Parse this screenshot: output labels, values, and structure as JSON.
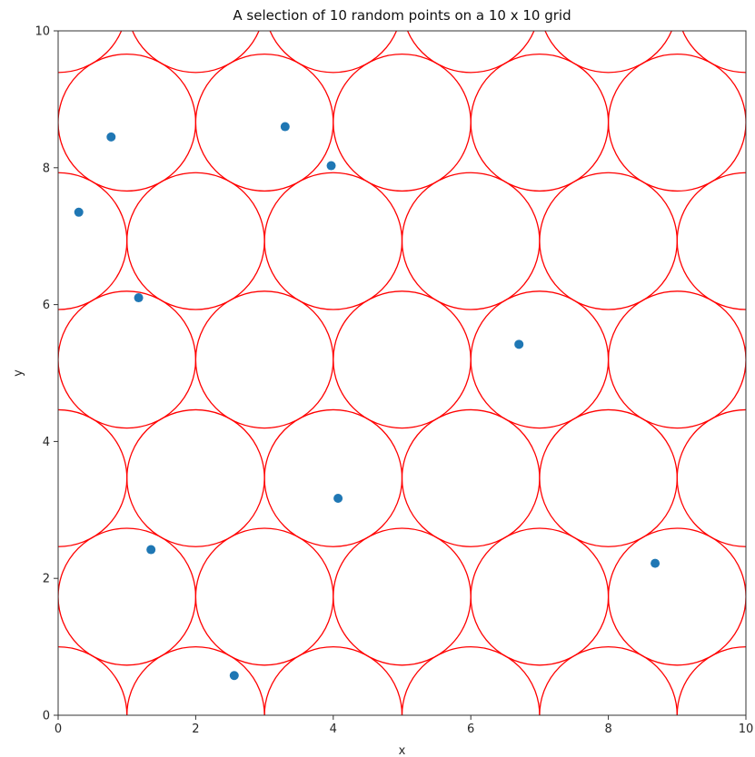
{
  "chart_data": {
    "type": "scatter",
    "title": "A selection of 10 random points on a 10 x 10 grid",
    "xlabel": "x",
    "ylabel": "y",
    "xlim": [
      0,
      10
    ],
    "ylim": [
      0,
      10
    ],
    "xticks": [
      "0",
      "2",
      "4",
      "6",
      "8",
      "10"
    ],
    "yticks": [
      "0",
      "2",
      "4",
      "6",
      "8",
      "10"
    ],
    "grid": false,
    "colors": {
      "points": "#1f77b4",
      "circles": "#ff0000",
      "axes": "#333333"
    },
    "circle_radius": 1.0,
    "circle_centers": [
      [
        0,
        0
      ],
      [
        2,
        0
      ],
      [
        4,
        0
      ],
      [
        6,
        0
      ],
      [
        8,
        0
      ],
      [
        10,
        0
      ],
      [
        1,
        1.732
      ],
      [
        3,
        1.732
      ],
      [
        5,
        1.732
      ],
      [
        7,
        1.732
      ],
      [
        9,
        1.732
      ],
      [
        0,
        3.464
      ],
      [
        2,
        3.464
      ],
      [
        4,
        3.464
      ],
      [
        6,
        3.464
      ],
      [
        8,
        3.464
      ],
      [
        10,
        3.464
      ],
      [
        1,
        5.196
      ],
      [
        3,
        5.196
      ],
      [
        5,
        5.196
      ],
      [
        7,
        5.196
      ],
      [
        9,
        5.196
      ],
      [
        0,
        6.928
      ],
      [
        2,
        6.928
      ],
      [
        4,
        6.928
      ],
      [
        6,
        6.928
      ],
      [
        8,
        6.928
      ],
      [
        10,
        6.928
      ],
      [
        1,
        8.66
      ],
      [
        3,
        8.66
      ],
      [
        5,
        8.66
      ],
      [
        7,
        8.66
      ],
      [
        9,
        8.66
      ],
      [
        0,
        10.392
      ],
      [
        2,
        10.392
      ],
      [
        4,
        10.392
      ],
      [
        6,
        10.392
      ],
      [
        8,
        10.392
      ],
      [
        10,
        10.392
      ]
    ],
    "points": [
      {
        "x": 0.77,
        "y": 8.45
      },
      {
        "x": 3.3,
        "y": 8.6
      },
      {
        "x": 3.97,
        "y": 8.03
      },
      {
        "x": 0.3,
        "y": 7.35
      },
      {
        "x": 1.17,
        "y": 6.1
      },
      {
        "x": 6.7,
        "y": 5.42
      },
      {
        "x": 4.07,
        "y": 3.17
      },
      {
        "x": 1.35,
        "y": 2.42
      },
      {
        "x": 8.68,
        "y": 2.22
      },
      {
        "x": 2.56,
        "y": 0.58
      }
    ]
  }
}
